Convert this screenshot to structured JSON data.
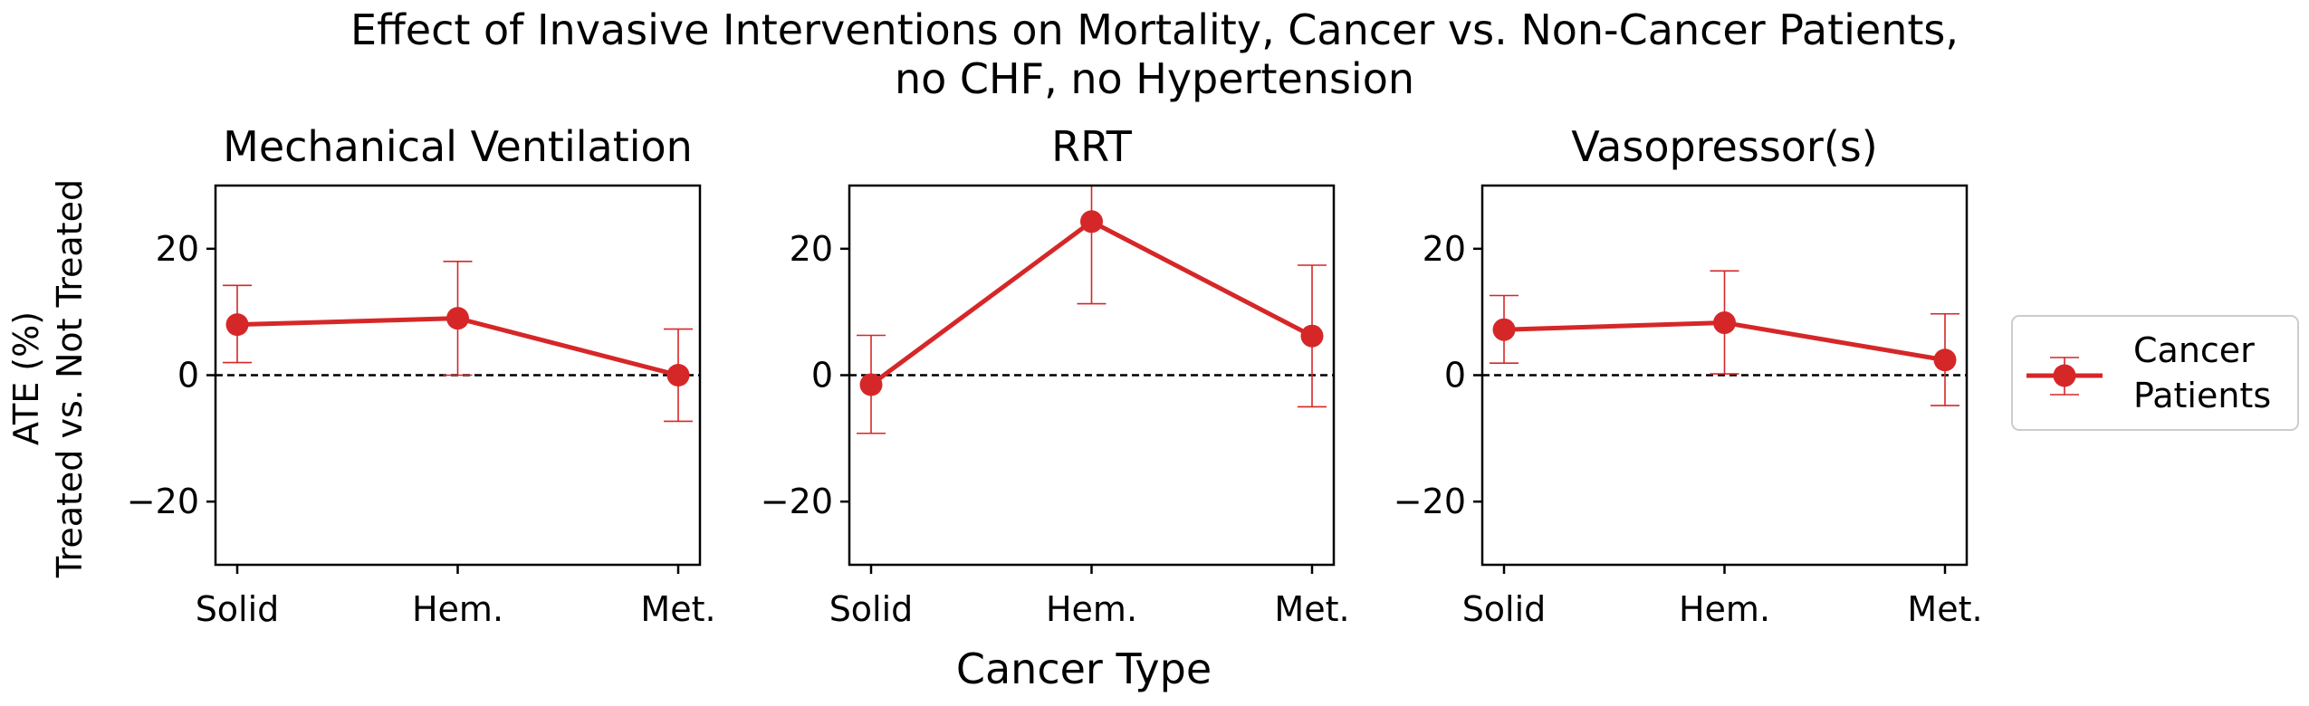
{
  "figure": {
    "title_line1": "Effect of Invasive Interventions on Mortality, Cancer vs. Non-Cancer Patients,",
    "title_line2": "no CHF, no Hypertension",
    "ylabel_line1": "ATE (%)",
    "ylabel_line2": "Treated vs. Not Treated",
    "xlabel": "Cancer Type",
    "legend_line1": "Cancer",
    "legend_line2": "Patients",
    "series_color": "#d62728"
  },
  "chart_data": [
    {
      "type": "line",
      "title": "Mechanical Ventilation",
      "categories": [
        "Solid",
        "Hem.",
        "Met."
      ],
      "series": [
        {
          "name": "Cancer Patients",
          "values": [
            8.0,
            9.0,
            0.0
          ],
          "err_low": [
            2.0,
            0.0,
            -7.3
          ],
          "err_high": [
            14.2,
            18.0,
            7.3
          ]
        }
      ],
      "ylim": [
        -30,
        30
      ],
      "yticks": [
        -20,
        0,
        20
      ],
      "reference_line": 0
    },
    {
      "type": "line",
      "title": "RRT",
      "categories": [
        "Solid",
        "Hem.",
        "Met."
      ],
      "series": [
        {
          "name": "Cancer Patients",
          "values": [
            -1.5,
            24.3,
            6.2
          ],
          "err_low": [
            -9.2,
            11.3,
            -5.0
          ],
          "err_high": [
            6.3,
            30.0,
            17.4
          ]
        }
      ],
      "ylim": [
        -30,
        30
      ],
      "yticks": [
        -20,
        0,
        20
      ],
      "reference_line": 0
    },
    {
      "type": "line",
      "title": "Vasopressor(s)",
      "categories": [
        "Solid",
        "Hem.",
        "Met."
      ],
      "series": [
        {
          "name": "Cancer Patients",
          "values": [
            7.2,
            8.3,
            2.4
          ],
          "err_low": [
            1.9,
            0.2,
            -4.8
          ],
          "err_high": [
            12.6,
            16.5,
            9.7
          ]
        }
      ],
      "ylim": [
        -30,
        30
      ],
      "yticks": [
        -20,
        0,
        20
      ],
      "reference_line": 0
    }
  ]
}
